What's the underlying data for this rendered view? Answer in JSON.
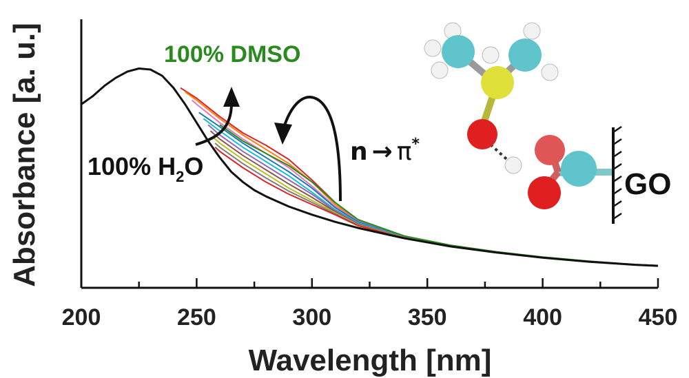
{
  "chart_data": {
    "type": "line",
    "xlabel": "Wavelength [nm]",
    "ylabel": "Absorbance [a. u.]",
    "xlim": [
      200,
      450
    ],
    "ylim": [
      0,
      1
    ],
    "xticks": [
      200,
      250,
      300,
      350,
      400,
      450
    ],
    "grid": false,
    "annotations": {
      "dmso": "100% DMSO",
      "water_prefix": "100% H",
      "water_sub": "2",
      "water_suffix": "O",
      "transition_n": "n",
      "transition_arrow": "→",
      "transition_pi": "π",
      "transition_star": "*",
      "surface": "GO"
    },
    "colors": {
      "water": "#111111",
      "dmso": "#2b8a1e",
      "intermediate": [
        "#d62728",
        "#ff7f0e",
        "#e377c2",
        "#1f77b4",
        "#17becf",
        "#9467bd",
        "#8c564b",
        "#bcbd22",
        "#7f7f7f"
      ]
    },
    "series": [
      {
        "x": [
          200,
          205,
          210,
          215,
          220,
          225,
          230,
          235,
          240,
          245,
          250,
          255,
          260,
          265,
          270,
          275,
          280,
          290,
          300,
          310,
          320,
          340,
          360,
          380,
          400,
          420,
          440,
          450
        ],
        "values": [
          0.82,
          0.86,
          0.91,
          0.95,
          0.98,
          0.995,
          0.99,
          0.96,
          0.9,
          0.82,
          0.73,
          0.64,
          0.56,
          0.49,
          0.44,
          0.4,
          0.37,
          0.32,
          0.28,
          0.245,
          0.215,
          0.165,
          0.125,
          0.095,
          0.07,
          0.05,
          0.035,
          0.03
        ]
      },
      {
        "x": [
          243,
          250,
          260,
          270,
          280,
          290,
          300,
          310,
          320,
          340,
          360,
          380,
          400,
          420,
          440,
          450
        ],
        "values": [
          0.9,
          0.85,
          0.76,
          0.68,
          0.62,
          0.55,
          0.45,
          0.34,
          0.255,
          0.175,
          0.13,
          0.098,
          0.072,
          0.052,
          0.036,
          0.031
        ]
      },
      {
        "x": [
          245,
          250,
          260,
          270,
          280,
          290,
          300,
          310,
          320,
          340,
          360,
          380,
          400,
          420,
          440,
          450
        ],
        "values": [
          0.88,
          0.84,
          0.75,
          0.67,
          0.6,
          0.53,
          0.44,
          0.33,
          0.25,
          0.174,
          0.129,
          0.097,
          0.071,
          0.051,
          0.036,
          0.031
        ]
      },
      {
        "x": [
          248,
          250,
          260,
          270,
          280,
          290,
          300,
          310,
          320,
          340,
          360,
          380,
          400,
          420,
          440,
          450
        ],
        "values": [
          0.84,
          0.82,
          0.73,
          0.65,
          0.58,
          0.51,
          0.42,
          0.32,
          0.248,
          0.172,
          0.128,
          0.096,
          0.071,
          0.051,
          0.036,
          0.031
        ]
      },
      {
        "x": [
          251,
          260,
          270,
          280,
          290,
          300,
          310,
          320,
          340,
          360,
          380,
          400,
          420,
          440,
          450
        ],
        "values": [
          0.78,
          0.71,
          0.63,
          0.56,
          0.49,
          0.41,
          0.315,
          0.245,
          0.171,
          0.127,
          0.096,
          0.07,
          0.05,
          0.035,
          0.031
        ]
      },
      {
        "x": [
          253,
          260,
          270,
          280,
          290,
          300,
          310,
          320,
          340,
          360,
          380,
          400,
          420,
          440,
          450
        ],
        "values": [
          0.75,
          0.69,
          0.61,
          0.54,
          0.47,
          0.39,
          0.305,
          0.24,
          0.17,
          0.127,
          0.096,
          0.07,
          0.05,
          0.035,
          0.031
        ]
      },
      {
        "x": [
          255,
          260,
          270,
          280,
          290,
          300,
          310,
          320,
          340,
          360,
          380,
          400,
          420,
          440,
          450
        ],
        "values": [
          0.72,
          0.67,
          0.59,
          0.52,
          0.45,
          0.38,
          0.3,
          0.236,
          0.169,
          0.126,
          0.095,
          0.07,
          0.05,
          0.035,
          0.03
        ]
      },
      {
        "x": [
          256,
          260,
          270,
          280,
          290,
          300,
          310,
          320,
          340,
          360,
          380,
          400,
          420,
          440,
          450
        ],
        "values": [
          0.69,
          0.65,
          0.57,
          0.5,
          0.43,
          0.365,
          0.295,
          0.233,
          0.168,
          0.126,
          0.095,
          0.07,
          0.05,
          0.035,
          0.03
        ]
      },
      {
        "x": [
          257,
          260,
          270,
          280,
          290,
          300,
          310,
          320,
          340,
          360,
          380,
          400,
          420,
          440,
          450
        ],
        "values": [
          0.66,
          0.63,
          0.55,
          0.48,
          0.41,
          0.35,
          0.29,
          0.23,
          0.167,
          0.125,
          0.095,
          0.07,
          0.05,
          0.035,
          0.03
        ]
      },
      {
        "x": [
          258,
          260,
          270,
          280,
          290,
          300,
          310,
          320,
          340,
          360,
          380,
          400,
          420,
          440,
          450
        ],
        "values": [
          0.63,
          0.61,
          0.53,
          0.46,
          0.395,
          0.34,
          0.285,
          0.228,
          0.166,
          0.125,
          0.095,
          0.07,
          0.05,
          0.035,
          0.03
        ]
      },
      {
        "x": [
          258,
          260,
          270,
          280,
          290,
          300,
          310,
          320,
          340,
          360,
          380,
          400,
          420,
          440,
          450
        ],
        "values": [
          0.61,
          0.59,
          0.51,
          0.44,
          0.38,
          0.33,
          0.28,
          0.226,
          0.165,
          0.124,
          0.094,
          0.07,
          0.05,
          0.035,
          0.03
        ]
      },
      {
        "x": [
          260,
          265,
          270,
          280,
          290,
          300,
          310,
          320,
          340,
          360,
          380,
          400,
          420,
          440,
          450
        ],
        "values": [
          0.72,
          0.68,
          0.64,
          0.58,
          0.52,
          0.44,
          0.34,
          0.256,
          0.176,
          0.131,
          0.099,
          0.073,
          0.053,
          0.037,
          0.032
        ]
      }
    ]
  }
}
